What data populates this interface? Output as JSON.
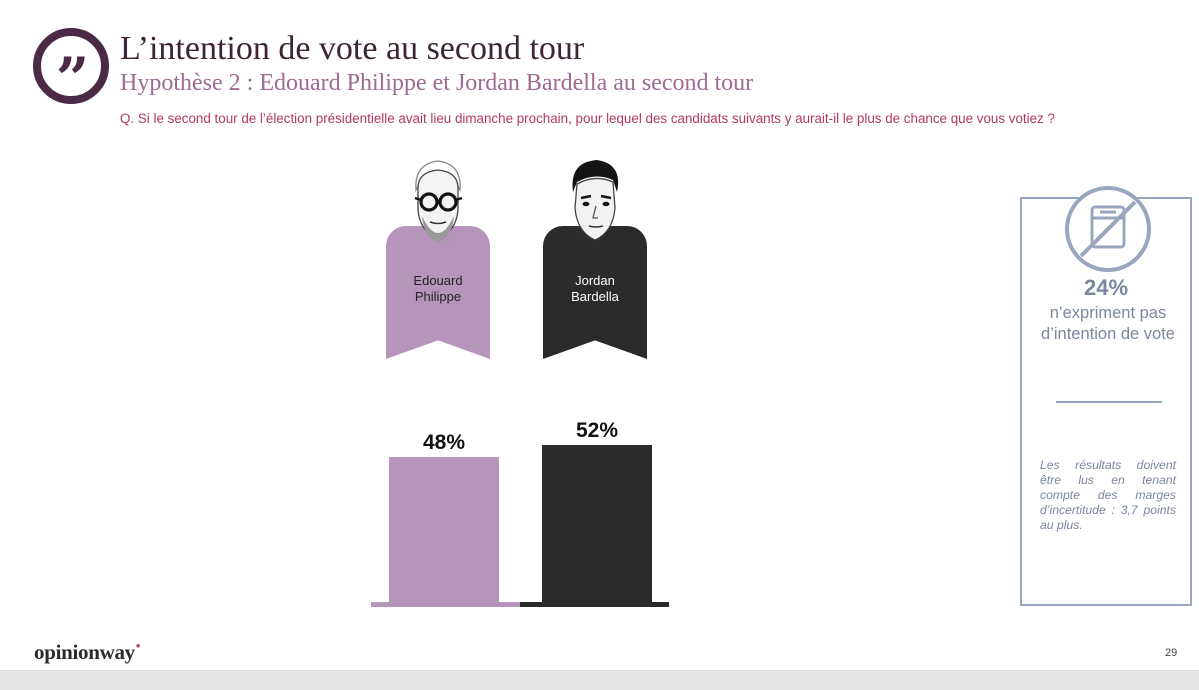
{
  "header": {
    "title": "L’intention de vote au second tour",
    "subtitle": "Hypothèse 2 : Edouard Philippe et Jordan Bardella au second tour",
    "question": "Q. Si le second tour de l’élection présidentielle avait lieu dimanche prochain, pour lequel des candidats suivants y aurait-il le plus de chance que vous votiez ?"
  },
  "candidates": [
    {
      "line1": "Edouard",
      "line2": "Philippe",
      "color": "#b794bc",
      "text_color": "#222222"
    },
    {
      "line1": "Jordan",
      "line2": "Bardella",
      "color": "#2b2b2b",
      "text_color": "#ffffff"
    }
  ],
  "chart_data": {
    "type": "bar",
    "categories": [
      "Edouard Philippe",
      "Jordan Bardella"
    ],
    "values": [
      48,
      52
    ],
    "value_labels": [
      "48%",
      "52%"
    ],
    "colors": [
      "#b794bc",
      "#2b2b2b"
    ],
    "ylim": [
      0,
      52
    ],
    "grid": false,
    "legend": "none"
  },
  "side_panel": {
    "icon": "crossed-out-ballot-icon",
    "abstention_pct": "24%",
    "abstention_label": "n’expriment pas d’intention de vote",
    "note": "Les résultats doivent être lus en tenant compte des marges d’incertitude : 3,7 points au plus."
  },
  "footer": {
    "logo": "opinionway",
    "logo_dot": "•",
    "page_number": "29"
  },
  "colors": {
    "title": "#3d2437",
    "subtitle": "#9e6b93",
    "question": "#b03a5b",
    "panel": "#7a869f"
  }
}
